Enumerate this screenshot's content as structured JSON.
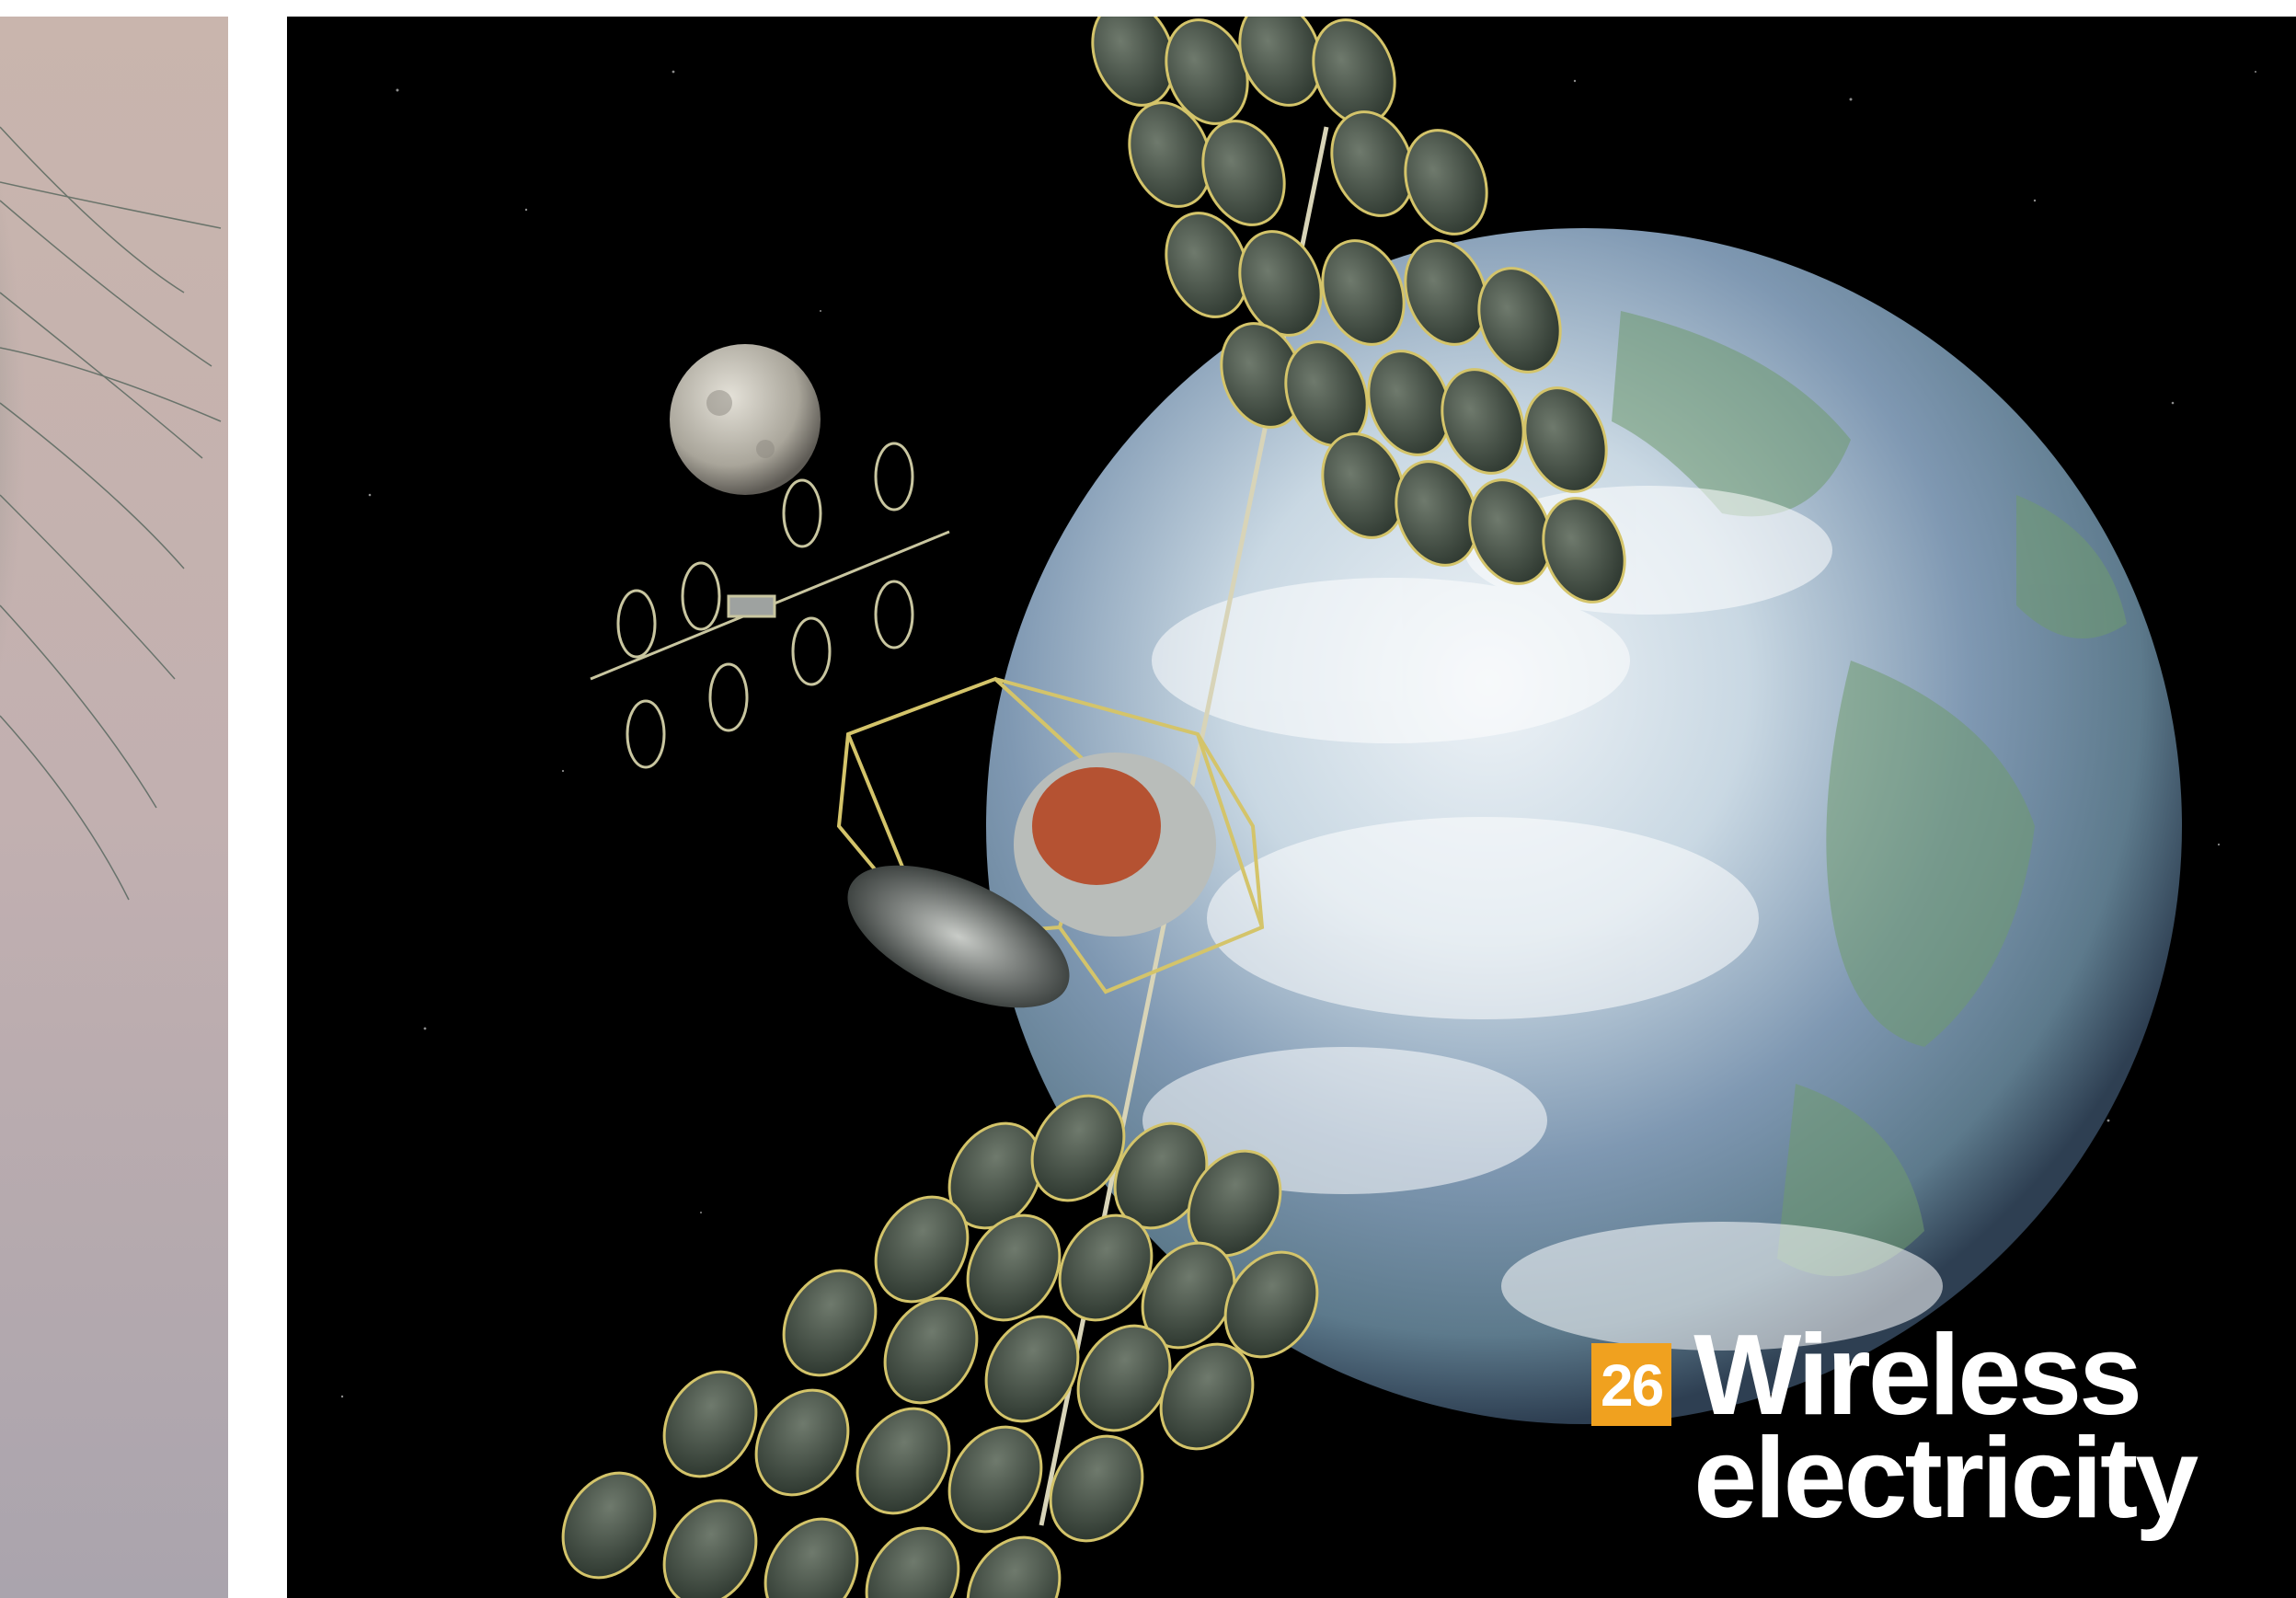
{
  "feature": {
    "page_number": "26",
    "title_line1": "Wireless",
    "title_line2": "electricity"
  },
  "colors": {
    "badge": "#f0a11f",
    "space": "#000000",
    "page": "#ffffff"
  },
  "images": {
    "left": "cropped-portrait-photo",
    "main": "space-solar-power-satellite-artwork"
  }
}
